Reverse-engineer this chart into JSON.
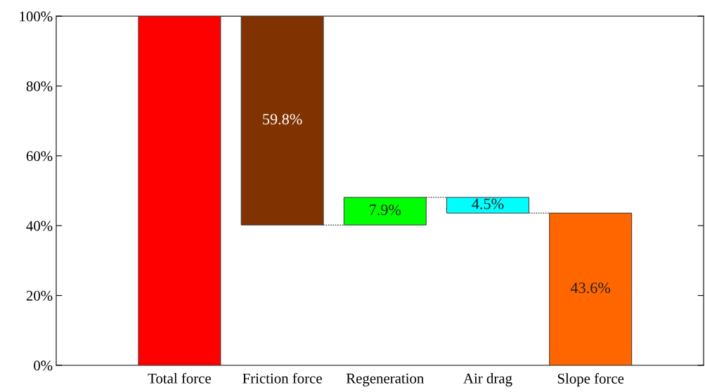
{
  "chart_data": {
    "type": "bar",
    "categories": [
      "Total force",
      "Friction force",
      "Regeneration",
      "Air drag",
      "Slope force"
    ],
    "values": [
      100,
      -59.8,
      7.9,
      -4.5,
      43.6
    ],
    "base": [
      0,
      100,
      40.2,
      48.1,
      0
    ],
    "colors": [
      "#ff0000",
      "#803300",
      "#00ff00",
      "#00ffff",
      "#ff6600"
    ],
    "value_labels": [
      null,
      "59.8%",
      "7.9%",
      "4.5%",
      "43.6%"
    ],
    "ylim": [
      0,
      100
    ],
    "yticks": [
      {
        "value": 0,
        "label": "0%"
      },
      {
        "value": 20,
        "label": "20%"
      },
      {
        "value": 40,
        "label": "40%"
      },
      {
        "value": 60,
        "label": "60%"
      },
      {
        "value": 80,
        "label": "80%"
      },
      {
        "value": 100,
        "label": "100%"
      }
    ],
    "grid": false,
    "legend": false
  }
}
